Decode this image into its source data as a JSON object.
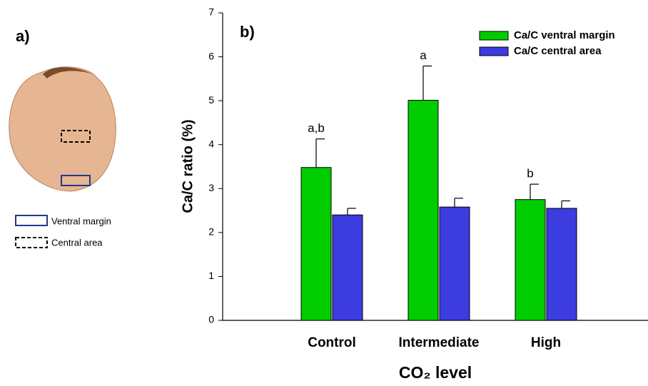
{
  "panel_a": {
    "label": "a)",
    "legend": [
      "Ventral margin",
      "Central area"
    ]
  },
  "chart_data": {
    "type": "bar",
    "title": "b)",
    "y_label": "Ca/C ratio (%)",
    "x_label": "CO₂ level",
    "categories": [
      "Control",
      "Intermediate",
      "High"
    ],
    "series": [
      {
        "name": "Ca/C ventral margin",
        "color": "#00cc00",
        "values": [
          3.48,
          5.01,
          2.75
        ],
        "errors": [
          0.65,
          0.78,
          0.35
        ]
      },
      {
        "name": "Ca/C central area",
        "color": "#3c3ce0",
        "values": [
          2.4,
          2.58,
          2.55
        ],
        "errors": [
          0.15,
          0.2,
          0.17
        ]
      }
    ],
    "annotations": [
      "a,b",
      "a",
      "b"
    ],
    "ylim": [
      0,
      7
    ],
    "yticks": [
      0,
      1,
      2,
      3,
      4,
      5,
      6,
      7
    ],
    "grid": false,
    "legend": "top-right"
  }
}
